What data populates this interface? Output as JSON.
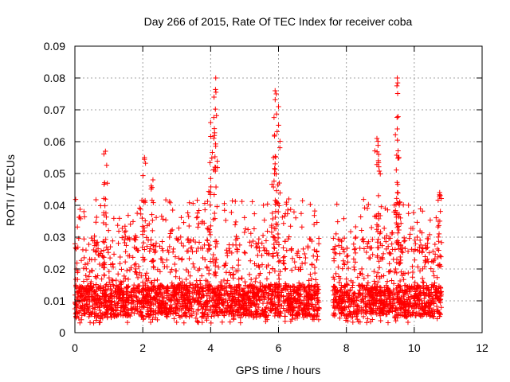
{
  "chart_data": {
    "type": "scatter",
    "title": "Day 266 of 2015, Rate Of TEC Index for receiver coba",
    "xlabel": "GPS time / hours",
    "ylabel": "ROTI / TECUs",
    "xlim": [
      0,
      12
    ],
    "ylim": [
      0,
      0.09
    ],
    "x_ticks": [
      0,
      2,
      4,
      6,
      8,
      10,
      12
    ],
    "y_ticks": [
      0,
      0.01,
      0.02,
      0.03,
      0.04,
      0.05,
      0.06,
      0.07,
      0.08,
      0.09
    ],
    "x_tick_labels": [
      "0",
      "2",
      "4",
      "6",
      "8",
      "10",
      "12"
    ],
    "y_tick_labels": [
      "0",
      "0.01",
      "0.02",
      "0.03",
      "0.04",
      "0.05",
      "0.06",
      "0.07",
      "0.08",
      "0.09"
    ],
    "grid": true,
    "marker": "+",
    "colors": {
      "points": "#ff0000",
      "grid": "#a0a0a0",
      "axis": "#000000"
    },
    "series": [
      {
        "name": "ROTI",
        "x_range": [
          0.0,
          10.8
        ],
        "data_gap_hours": [
          7.2,
          7.6
        ],
        "baseline_range": [
          0.005,
          0.015
        ],
        "typical_range": [
          0.003,
          0.03
        ],
        "peaks": [
          {
            "x": 0.9,
            "y": 0.057
          },
          {
            "x": 2.05,
            "y": 0.055
          },
          {
            "x": 2.3,
            "y": 0.048
          },
          {
            "x": 4.15,
            "y": 0.08
          },
          {
            "x": 4.1,
            "y": 0.074
          },
          {
            "x": 4.0,
            "y": 0.066
          },
          {
            "x": 5.9,
            "y": 0.076
          },
          {
            "x": 6.0,
            "y": 0.071
          },
          {
            "x": 5.85,
            "y": 0.055
          },
          {
            "x": 8.9,
            "y": 0.061
          },
          {
            "x": 8.95,
            "y": 0.056
          },
          {
            "x": 9.5,
            "y": 0.08
          },
          {
            "x": 9.5,
            "y": 0.064
          },
          {
            "x": 9.55,
            "y": 0.055
          },
          {
            "x": 10.75,
            "y": 0.044
          }
        ]
      }
    ]
  }
}
